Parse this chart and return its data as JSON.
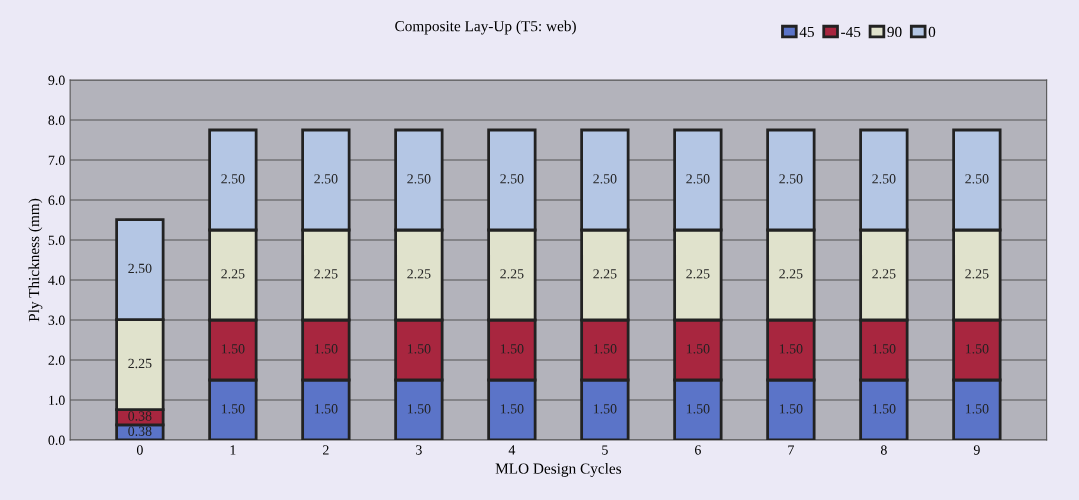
{
  "chart_data": {
    "type": "bar",
    "stacked": true,
    "title": "Composite Lay-Up (T5: web)",
    "xlabel": "MLO Design Cycles",
    "ylabel": "Ply Thickness (mm)",
    "categories": [
      "0",
      "1",
      "2",
      "3",
      "4",
      "5",
      "6",
      "7",
      "8",
      "9"
    ],
    "series": [
      {
        "name": "45",
        "color": "#5b74c8",
        "values": [
          0.38,
          1.5,
          1.5,
          1.5,
          1.5,
          1.5,
          1.5,
          1.5,
          1.5,
          1.5
        ],
        "value_labels": [
          "0.38",
          "1.50",
          "1.50",
          "1.50",
          "1.50",
          "1.50",
          "1.50",
          "1.50",
          "1.50",
          "1.50"
        ]
      },
      {
        "name": "-45",
        "color": "#a8263f",
        "values": [
          0.38,
          1.5,
          1.5,
          1.5,
          1.5,
          1.5,
          1.5,
          1.5,
          1.5,
          1.5
        ],
        "value_labels": [
          "0.38",
          "1.50",
          "1.50",
          "1.50",
          "1.50",
          "1.50",
          "1.50",
          "1.50",
          "1.50",
          "1.50"
        ]
      },
      {
        "name": "90",
        "color": "#e0e2cc",
        "values": [
          2.25,
          2.25,
          2.25,
          2.25,
          2.25,
          2.25,
          2.25,
          2.25,
          2.25,
          2.25
        ],
        "value_labels": [
          "2.25",
          "2.25",
          "2.25",
          "2.25",
          "2.25",
          "2.25",
          "2.25",
          "2.25",
          "2.25",
          "2.25"
        ]
      },
      {
        "name": "0",
        "color": "#b4c6e4",
        "values": [
          2.5,
          2.5,
          2.5,
          2.5,
          2.5,
          2.5,
          2.5,
          2.5,
          2.5,
          2.5
        ],
        "value_labels": [
          "2.50",
          "2.50",
          "2.50",
          "2.50",
          "2.50",
          "2.50",
          "2.50",
          "2.50",
          "2.50",
          "2.50"
        ]
      }
    ],
    "ylim": [
      0,
      9
    ],
    "yticks": [
      {
        "value": 0,
        "label": "0.0"
      },
      {
        "value": 1,
        "label": "1.0"
      },
      {
        "value": 2,
        "label": "2.0"
      },
      {
        "value": 3,
        "label": "3.0"
      },
      {
        "value": 4,
        "label": "4.0"
      },
      {
        "value": 5,
        "label": "5.0"
      },
      {
        "value": 6,
        "label": "6.0"
      },
      {
        "value": 7,
        "label": "7.0"
      },
      {
        "value": 8,
        "label": "8.0"
      },
      {
        "value": 9,
        "label": "9.0"
      }
    ],
    "grid": "y",
    "legend": "top right"
  }
}
